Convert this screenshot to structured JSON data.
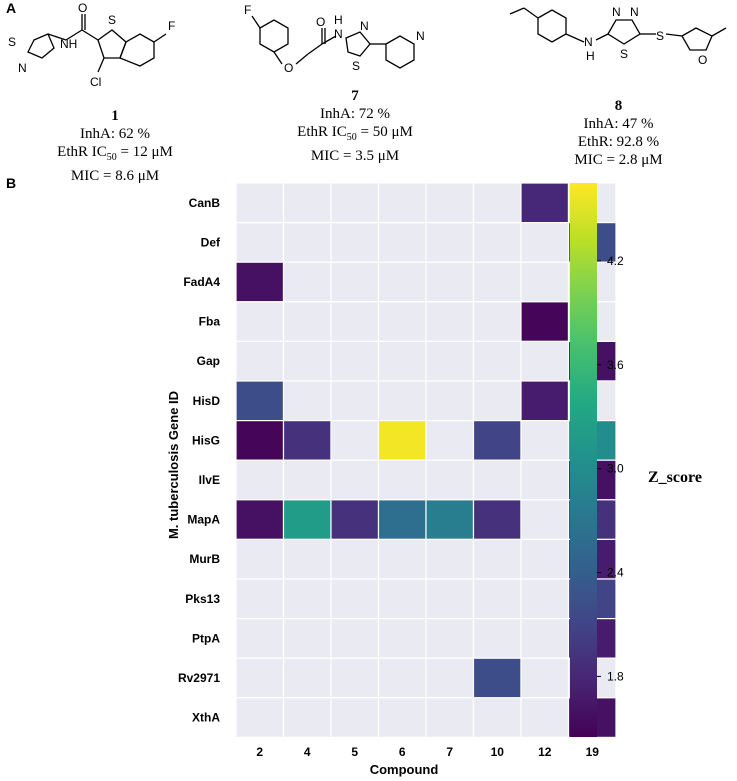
{
  "panels": {
    "a": "A",
    "b": "B"
  },
  "compounds": [
    {
      "number": "1",
      "lines": [
        {
          "text": "InhA: 62 %"
        },
        {
          "pre": "EthR IC",
          "sub": "50",
          "post": " = 12 μM"
        },
        {
          "text": "MIC = 8.6 μM"
        }
      ],
      "atoms": {
        "s1": "S",
        "f": "F",
        "o": "O",
        "nh": "NH",
        "s2": "S",
        "n": "N",
        "cl": "Cl"
      }
    },
    {
      "number": "7",
      "lines": [
        {
          "text": "InhA: 72 %"
        },
        {
          "pre": "EthR IC",
          "sub": "50",
          "post": " = 50 μM"
        },
        {
          "text": "MIC = 3.5 μM"
        }
      ],
      "atoms": {
        "f": "F",
        "o1": "O",
        "o2": "O",
        "h": "H",
        "n1": "N",
        "n2": "N",
        "s": "S",
        "n3": "N"
      }
    },
    {
      "number": "8",
      "lines": [
        {
          "text": "InhA: 47 %"
        },
        {
          "text": "EthR: 92.8 %"
        },
        {
          "text": "MIC = 2.8 μM"
        }
      ],
      "atoms": {
        "n1": "N",
        "n2": "N",
        "h": "H",
        "s1": "S",
        "s2": "S",
        "o": "O",
        "n3": "N"
      }
    }
  ],
  "chart_data": {
    "type": "heatmap",
    "xlabel": "Compound",
    "ylabel": "M. tuberculosis Gene ID",
    "x": [
      "2",
      "4",
      "5",
      "6",
      "7",
      "10",
      "12",
      "19"
    ],
    "y": [
      "CanB",
      "Def",
      "FadA4",
      "Fba",
      "Gap",
      "HisD",
      "HisG",
      "IlvE",
      "MapA",
      "MurB",
      "Pks13",
      "PtpA",
      "Rv2971",
      "XthA"
    ],
    "values": [
      [
        null,
        null,
        null,
        null,
        null,
        null,
        1.8,
        null
      ],
      [
        null,
        null,
        null,
        null,
        null,
        null,
        null,
        2.2
      ],
      [
        1.6,
        null,
        null,
        null,
        null,
        null,
        null,
        null
      ],
      [
        null,
        null,
        null,
        null,
        null,
        null,
        1.5,
        null
      ],
      [
        null,
        null,
        null,
        null,
        null,
        null,
        null,
        1.6
      ],
      [
        2.2,
        null,
        null,
        null,
        null,
        null,
        1.7,
        null
      ],
      [
        1.5,
        1.9,
        null,
        4.6,
        null,
        2.1,
        null,
        3.0
      ],
      [
        null,
        null,
        null,
        null,
        null,
        null,
        null,
        1.6
      ],
      [
        1.6,
        3.2,
        1.9,
        2.6,
        2.8,
        1.9,
        null,
        1.9
      ],
      [
        null,
        null,
        null,
        null,
        null,
        null,
        null,
        1.7
      ],
      [
        null,
        null,
        null,
        null,
        null,
        null,
        null,
        2.1
      ],
      [
        null,
        null,
        null,
        null,
        null,
        null,
        null,
        1.7
      ],
      [
        null,
        null,
        null,
        null,
        null,
        2.2,
        null,
        null
      ],
      [
        null,
        null,
        null,
        null,
        null,
        null,
        null,
        1.6
      ]
    ],
    "colorbar": {
      "label": "Z_score",
      "ticks": [
        "4.2",
        "3.6",
        "3.0",
        "2.4",
        "1.8"
      ],
      "tick_values": [
        4.2,
        3.6,
        3.0,
        2.4,
        1.8
      ],
      "range": [
        1.45,
        4.65
      ],
      "colormap": "viridis"
    },
    "empty_cell_color": "#eaeaf2"
  }
}
